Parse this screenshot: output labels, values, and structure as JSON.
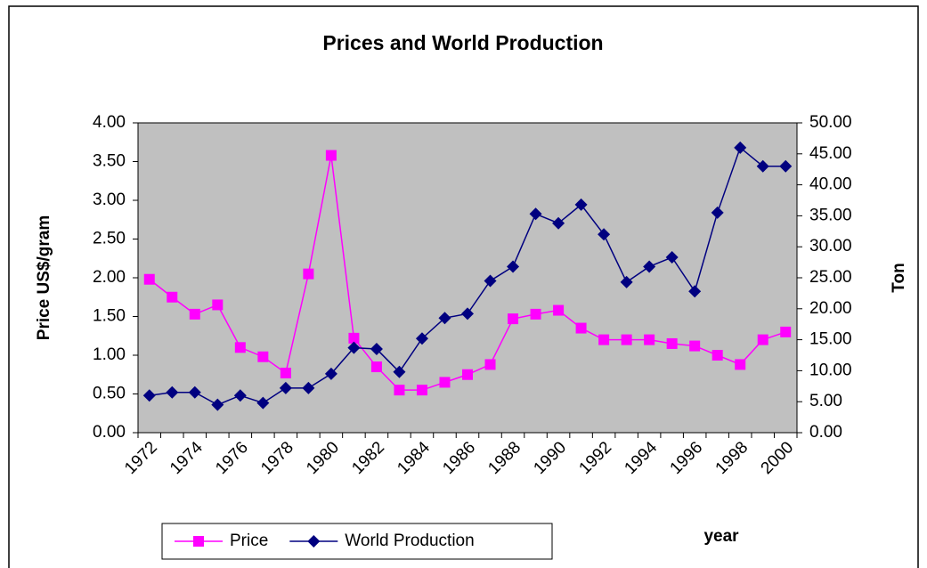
{
  "chart_data": {
    "type": "line",
    "title": "Prices and World Production",
    "x_label": "year",
    "y_label": "Price US$/gram",
    "y2_label": "Ton",
    "categories": [
      "1972",
      null,
      "1974",
      null,
      "1976",
      null,
      "1978",
      null,
      "1980",
      null,
      "1982",
      null,
      "1984",
      null,
      "1986",
      null,
      "1988",
      null,
      "1990",
      null,
      "1992",
      null,
      "1994",
      null,
      "1996",
      null,
      "1998",
      null,
      "2000"
    ],
    "series": [
      {
        "name": "Price",
        "color": "#ff00ff",
        "marker": "square",
        "values": [
          1.98,
          1.75,
          1.53,
          1.65,
          1.1,
          0.98,
          0.77,
          2.05,
          3.58,
          1.22,
          0.85,
          0.55,
          0.55,
          0.65,
          0.75,
          0.88,
          1.47,
          1.53,
          1.58,
          1.35,
          1.2,
          1.2,
          1.2,
          1.15,
          1.12,
          1.0,
          0.88,
          1.2,
          1.3
        ]
      },
      {
        "name": "World Production",
        "color": "#000080",
        "marker": "diamond",
        "axis": "y2",
        "values": [
          6.0,
          6.5,
          6.5,
          4.5,
          6.0,
          4.8,
          7.2,
          7.2,
          9.5,
          13.7,
          13.5,
          9.8,
          15.2,
          18.5,
          19.2,
          24.5,
          26.8,
          35.3,
          33.8,
          36.8,
          32.0,
          24.3,
          26.8,
          28.3,
          22.8,
          35.5,
          46.0,
          43.0,
          43.0
        ]
      }
    ],
    "ylim": [
      0,
      4
    ],
    "yticks": [
      {
        "value": 0,
        "label": "0.00"
      },
      {
        "value": 0.5,
        "label": "0.50"
      },
      {
        "value": 1,
        "label": "1.00"
      },
      {
        "value": 1.5,
        "label": "1.50"
      },
      {
        "value": 2,
        "label": "2.00"
      },
      {
        "value": 2.5,
        "label": "2.50"
      },
      {
        "value": 3,
        "label": "3.00"
      },
      {
        "value": 3.5,
        "label": "3.50"
      },
      {
        "value": 4,
        "label": "4.00"
      }
    ],
    "y2lim": [
      0,
      50
    ],
    "y2ticks": [
      {
        "value": 0,
        "label": "0.00"
      },
      {
        "value": 5,
        "label": "5.00"
      },
      {
        "value": 10,
        "label": "10.00"
      },
      {
        "value": 15,
        "label": "15.00"
      },
      {
        "value": 20,
        "label": "20.00"
      },
      {
        "value": 25,
        "label": "25.00"
      },
      {
        "value": 30,
        "label": "30.00"
      },
      {
        "value": 35,
        "label": "35.00"
      },
      {
        "value": 40,
        "label": "40.00"
      },
      {
        "value": 45,
        "label": "45.00"
      },
      {
        "value": 50,
        "label": "50.00"
      }
    ],
    "grid": false,
    "plot_background": "#c0c0c0"
  }
}
